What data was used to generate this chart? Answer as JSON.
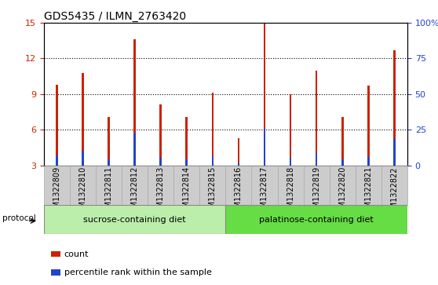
{
  "title": "GDS5435 / ILMN_2763420",
  "samples": [
    "GSM1322809",
    "GSM1322810",
    "GSM1322811",
    "GSM1322812",
    "GSM1322813",
    "GSM1322814",
    "GSM1322815",
    "GSM1322816",
    "GSM1322817",
    "GSM1322818",
    "GSM1322819",
    "GSM1322820",
    "GSM1322821",
    "GSM1322822"
  ],
  "count_values": [
    9.8,
    10.8,
    7.1,
    13.6,
    8.1,
    7.1,
    9.1,
    5.3,
    15.0,
    9.0,
    11.0,
    7.1,
    9.7,
    12.7
  ],
  "percentile_values": [
    3.8,
    4.2,
    3.5,
    5.7,
    3.6,
    3.5,
    3.7,
    3.2,
    6.1,
    3.6,
    4.0,
    3.5,
    3.7,
    5.2
  ],
  "ylim_left": [
    3,
    15
  ],
  "ylim_right": [
    0,
    100
  ],
  "yticks_left": [
    3,
    6,
    9,
    12,
    15
  ],
  "yticks_right": [
    0,
    25,
    50,
    75,
    100
  ],
  "ytick_labels_right": [
    "0",
    "25",
    "50",
    "75",
    "100%"
  ],
  "bar_color_count": "#cc2200",
  "bar_color_percentile": "#2244cc",
  "bar_width": 0.08,
  "grid_color": "black",
  "grid_linestyle": "dotted",
  "group1_label": "sucrose-containing diet",
  "group2_label": "palatinose-containing diet",
  "group1_color": "#bbeeaa",
  "group2_color": "#66dd44",
  "protocol_label": "protocol",
  "tick_area_color": "#cccccc",
  "legend_count_label": "count",
  "legend_percentile_label": "percentile rank within the sample",
  "title_fontsize": 10,
  "tick_fontsize": 7,
  "left_tick_color": "#cc2200",
  "right_tick_color": "#2244cc"
}
